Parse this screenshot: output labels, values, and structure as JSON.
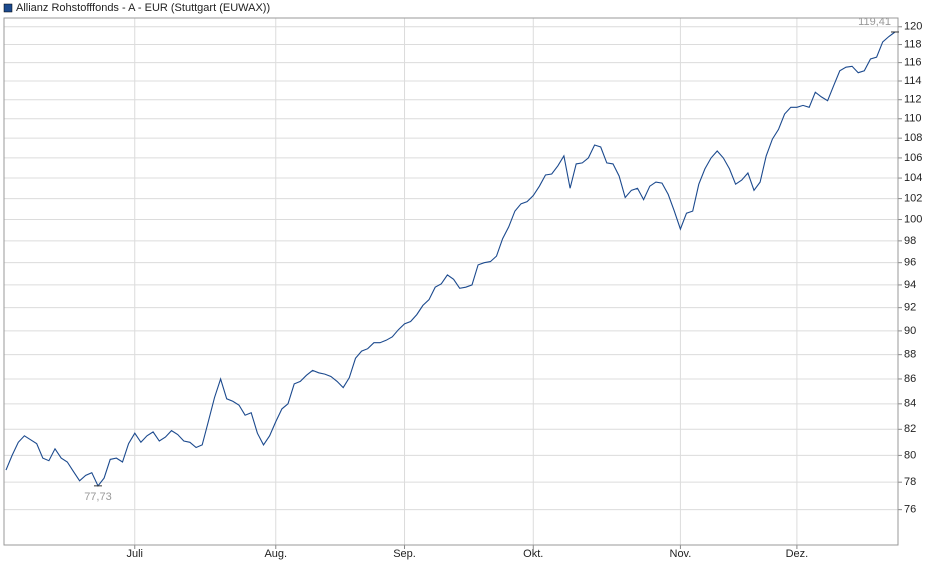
{
  "chart_data": {
    "type": "line",
    "series": [
      {
        "name": "Allianz Rohstofffonds - A - EUR (Stuttgart (EUWAX))",
        "color": "#1c4a8e",
        "values": [
          78.9,
          80.0,
          81.0,
          81.5,
          81.2,
          80.9,
          79.8,
          79.6,
          80.5,
          79.8,
          79.5,
          78.8,
          78.1,
          78.5,
          78.7,
          77.73,
          78.3,
          79.7,
          79.8,
          79.5,
          80.9,
          81.7,
          81.0,
          81.5,
          81.8,
          81.1,
          81.4,
          81.9,
          81.6,
          81.1,
          81.0,
          80.6,
          80.8,
          82.6,
          84.5,
          86.0,
          84.4,
          84.2,
          83.9,
          83.1,
          83.3,
          81.7,
          80.8,
          81.5,
          82.6,
          83.6,
          84.0,
          85.6,
          85.8,
          86.3,
          86.7,
          86.5,
          86.4,
          86.2,
          85.8,
          85.3,
          86.1,
          87.7,
          88.3,
          88.5,
          89.0,
          89.0,
          89.2,
          89.5,
          90.1,
          90.6,
          90.8,
          91.4,
          92.2,
          92.7,
          93.8,
          94.1,
          94.9,
          94.5,
          93.7,
          93.8,
          94.0,
          95.8,
          96.0,
          96.1,
          96.6,
          98.2,
          99.3,
          100.8,
          101.5,
          101.7,
          102.3,
          103.2,
          104.3,
          104.4,
          105.2,
          106.2,
          103.0,
          105.4,
          105.5,
          106.0,
          107.3,
          107.1,
          105.5,
          105.4,
          104.2,
          102.1,
          102.8,
          103.0,
          101.9,
          103.2,
          103.6,
          103.5,
          102.4,
          100.8,
          99.1,
          100.6,
          100.8,
          103.4,
          104.9,
          106.0,
          106.7,
          106.0,
          104.9,
          103.4,
          103.8,
          104.5,
          102.8,
          103.6,
          106.2,
          107.9,
          108.9,
          110.5,
          111.2,
          111.2,
          111.4,
          111.2,
          112.8,
          112.3,
          111.9,
          113.5,
          115.1,
          115.5,
          115.6,
          114.9,
          115.1,
          116.4,
          116.6,
          118.3,
          118.9,
          119.41
        ]
      }
    ],
    "categories": [
      null,
      null,
      null,
      null,
      null,
      null,
      null,
      null,
      null,
      null,
      null,
      null,
      null,
      null,
      null,
      null,
      null,
      null,
      null,
      null,
      null,
      "Juli",
      null,
      null,
      null,
      null,
      null,
      null,
      null,
      null,
      null,
      null,
      null,
      null,
      null,
      null,
      null,
      null,
      null,
      null,
      null,
      null,
      null,
      null,
      "Aug.",
      null,
      null,
      null,
      null,
      null,
      null,
      null,
      null,
      null,
      null,
      null,
      null,
      null,
      null,
      null,
      null,
      null,
      null,
      null,
      null,
      "Sep.",
      null,
      null,
      null,
      null,
      null,
      null,
      null,
      null,
      null,
      null,
      null,
      null,
      null,
      null,
      null,
      null,
      null,
      null,
      null,
      null,
      "Okt.",
      null,
      null,
      null,
      null,
      null,
      null,
      null,
      null,
      null,
      null,
      null,
      null,
      null,
      null,
      null,
      null,
      null,
      null,
      null,
      null,
      null,
      null,
      null,
      "Nov.",
      null,
      null,
      null,
      null,
      null,
      null,
      null,
      null,
      null,
      null,
      null,
      null,
      null,
      null,
      null,
      null,
      null,
      null,
      "Dez.",
      null,
      null,
      null,
      null,
      null,
      null,
      null,
      null,
      null,
      null,
      null,
      null,
      null,
      null,
      null,
      null
    ],
    "annotations": [
      {
        "label": "77,73",
        "value": 77.73
      },
      {
        "label": "119,41",
        "value": 119.41
      }
    ],
    "ylim": [
      73.5,
      121
    ],
    "log": true,
    "yticks": [
      76,
      78,
      80,
      82,
      84,
      86,
      88,
      90,
      92,
      94,
      96,
      98,
      100,
      102,
      104,
      106,
      108,
      110,
      112,
      114,
      116,
      118,
      120
    ],
    "grid": true
  }
}
